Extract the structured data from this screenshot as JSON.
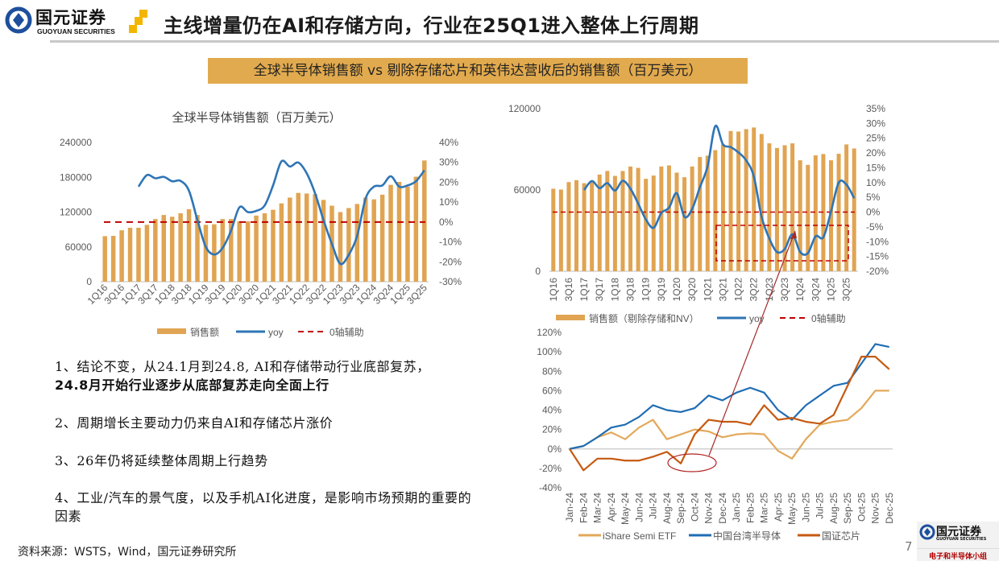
{
  "header": {
    "logo_cn": "国元证券",
    "logo_en": "GUOYUAN SECURITIES",
    "title": "主线增量仍在AI和存储方向，行业在25Q1进入整体上行周期"
  },
  "banner": "全球半导体销售额 vs 剔除存储芯片和英伟达营收后的销售额（百万美元）",
  "points": [
    {
      "text": "1、结论不变，从24.1月到24.8, AI和存储带动行业底部复苏，",
      "bold": "24.8月开始行业逐步从底部复苏走向全面上行"
    },
    {
      "text": "2、周期增长主要动力仍来自AI和存储芯片涨价"
    },
    {
      "text": "3、26年仍将延续整体周期上行趋势"
    },
    {
      "text": "4、工业/汽车的景气度，以及手机AI化进度，是影响市场预期的重要的因素"
    }
  ],
  "source": "资料来源：WSTS，Wind，国元证券研究所",
  "page_number": "7",
  "footer_logo": {
    "cn": "国元证券",
    "en": "GUOYUAN SECURITIES",
    "team": "电子和半导体小组"
  },
  "colors": {
    "bar": "#e0a452",
    "yoy": "#2e75b6",
    "zero_line": "#c00000",
    "ishare": "#e3a85a",
    "taiwan": "#1f6db3",
    "guozheng": "#c55a11",
    "banner": "#e2aa4e"
  },
  "chart_data": [
    {
      "type": "bar+line",
      "title": "全球半导体销售额（百万美元）",
      "categories": [
        "1Q16",
        "2Q16",
        "3Q16",
        "4Q16",
        "1Q17",
        "2Q17",
        "3Q17",
        "4Q17",
        "1Q18",
        "2Q18",
        "3Q18",
        "4Q18",
        "1Q19",
        "2Q19",
        "3Q19",
        "4Q19",
        "1Q20",
        "2Q20",
        "3Q20",
        "4Q20",
        "1Q21",
        "2Q21",
        "3Q21",
        "4Q21",
        "1Q22",
        "2Q22",
        "3Q22",
        "4Q22",
        "1Q23",
        "2Q23",
        "3Q23",
        "4Q23",
        "1Q24",
        "2Q24",
        "3Q24",
        "4Q24",
        "1Q25",
        "2Q25",
        "3Q25"
      ],
      "tick_labels": [
        "1Q16",
        "3Q16",
        "1Q17",
        "3Q17",
        "1Q18",
        "3Q18",
        "1Q19",
        "3Q19",
        "1Q20",
        "3Q20",
        "1Q21",
        "3Q21",
        "1Q22",
        "3Q22",
        "1Q23",
        "3Q23",
        "1Q24",
        "3Q24",
        "1Q25",
        "3Q25"
      ],
      "series": [
        {
          "name": "销售额",
          "type": "bar",
          "axis": "left",
          "values": [
            78500,
            79000,
            88600,
            93000,
            93000,
            98000,
            108000,
            115000,
            112000,
            118000,
            125000,
            115000,
            98000,
            99000,
            108000,
            108000,
            104000,
            104000,
            114000,
            118000,
            124000,
            135000,
            145000,
            153000,
            152000,
            151000,
            141000,
            131000,
            120000,
            127000,
            134000,
            145000,
            142000,
            150000,
            167000,
            172000,
            164000,
            181000,
            209000
          ]
        },
        {
          "name": "yoy",
          "type": "line",
          "axis": "right",
          "values": [
            null,
            null,
            null,
            null,
            17.8,
            23.6,
            22.0,
            22.7,
            20.5,
            20.7,
            15.7,
            1.0,
            -12.5,
            -16.3,
            -13.0,
            -4.4,
            7.4,
            5.0,
            5.6,
            8.3,
            18.4,
            30.5,
            27.9,
            29.9,
            24.5,
            14.4,
            1.0,
            -11.0,
            -21.0,
            -16.5,
            -7.0,
            11.7,
            17.8,
            18.4,
            23.0,
            17.8,
            18.4,
            20.5,
            26.0
          ]
        },
        {
          "name": "0轴辅助",
          "type": "dashed-line",
          "axis": "right",
          "value": 0
        }
      ],
      "left_axis": {
        "range": [
          0,
          240000
        ],
        "ticks": [
          "0",
          "60000",
          "120000",
          "180000",
          "240000"
        ]
      },
      "right_axis": {
        "range": [
          -30,
          40
        ],
        "unit": "%",
        "ticks": [
          "-30%",
          "-20%",
          "-10%",
          "0%",
          "10%",
          "20%",
          "30%",
          "40%"
        ]
      },
      "legend": "bottom",
      "grid": false
    },
    {
      "type": "bar+line",
      "categories": [
        "1Q16",
        "2Q16",
        "3Q16",
        "4Q16",
        "1Q17",
        "2Q17",
        "3Q17",
        "4Q17",
        "1Q18",
        "2Q18",
        "3Q18",
        "4Q18",
        "1Q19",
        "2Q19",
        "3Q19",
        "4Q19",
        "1Q20",
        "2Q20",
        "3Q20",
        "4Q20",
        "1Q21",
        "2Q21",
        "3Q21",
        "4Q21",
        "1Q22",
        "2Q22",
        "3Q22",
        "4Q22",
        "1Q23",
        "2Q23",
        "3Q23",
        "4Q23",
        "1Q24",
        "2Q24",
        "3Q24",
        "4Q24",
        "1Q25",
        "2Q25",
        "3Q25",
        "4Q25"
      ],
      "tick_labels": [
        "1Q16",
        "3Q16",
        "1Q17",
        "3Q17",
        "1Q18",
        "3Q18",
        "1Q19",
        "3Q19",
        "1Q20",
        "3Q20",
        "1Q21",
        "3Q21",
        "1Q22",
        "3Q22",
        "1Q23",
        "3Q23",
        "1Q24",
        "3Q24",
        "1Q25",
        "3Q25"
      ],
      "series": [
        {
          "name": "销售额（剔除存储和NV）",
          "type": "bar",
          "axis": "left",
          "values": [
            60900,
            60300,
            65800,
            67200,
            65000,
            67000,
            71400,
            74000,
            70400,
            74000,
            77300,
            76300,
            68200,
            70600,
            77300,
            78100,
            72800,
            69400,
            77300,
            84300,
            85300,
            89400,
            93600,
            103500,
            103100,
            104900,
            106100,
            101300,
            94400,
            91000,
            93000,
            94400,
            81900,
            78500,
            85500,
            86500,
            81900,
            86700,
            93600,
            90600
          ]
        },
        {
          "name": "yoy",
          "type": "line",
          "axis": "right",
          "values": [
            null,
            null,
            null,
            null,
            7.5,
            10.5,
            8.1,
            9.8,
            7.3,
            10.6,
            7.9,
            2.9,
            -2.5,
            -5.3,
            -0.3,
            1.5,
            6.4,
            -1.6,
            1.1,
            8.4,
            15.5,
            29.1,
            22.9,
            22.0,
            20.2,
            17.5,
            12.0,
            -1.6,
            -8.9,
            -13.5,
            -12.5,
            -7.5,
            -13.5,
            -13.9,
            -8.2,
            -8.5,
            0.2,
            10.0,
            9.3,
            4.7
          ]
        },
        {
          "name": "0轴辅助",
          "type": "dashed-line",
          "axis": "right",
          "value": 0
        }
      ],
      "left_axis": {
        "range": [
          0,
          120000
        ],
        "ticks": [
          "0",
          "60000",
          "120000"
        ]
      },
      "right_axis": {
        "range": [
          -20,
          35
        ],
        "unit": "%",
        "ticks": [
          "-20%",
          "-15%",
          "-10%",
          "-5%",
          "0%",
          "5%",
          "10%",
          "15%",
          "20%",
          "25%",
          "30%",
          "35%"
        ]
      },
      "highlight": "dashed box around 2Q23–4Q24 yoy trough",
      "legend": "bottom",
      "grid": false
    },
    {
      "type": "line",
      "x": [
        "Jan-24",
        "Feb-24",
        "Mar-24",
        "Apr-24",
        "May-24",
        "Jun-24",
        "Jul-24",
        "Aug-24",
        "Sep-24",
        "Oct-24",
        "Nov-24",
        "Dec-24",
        "Jan-25",
        "Feb-25",
        "Mar-25",
        "Apr-25",
        "May-25",
        "Jun-25",
        "Jul-25",
        "Aug-25",
        "Sep-25",
        "Oct-25",
        "Nov-25",
        "Dec-25"
      ],
      "series": [
        {
          "name": "iShare Semi ETF",
          "values": [
            0,
            3,
            12,
            17,
            10,
            22,
            30,
            10,
            15,
            20,
            18,
            12,
            15,
            16,
            15,
            -2,
            -10,
            10,
            25,
            28,
            30,
            42,
            60,
            60
          ]
        },
        {
          "name": "中国台湾半导体",
          "values": [
            0,
            3,
            12,
            22,
            25,
            33,
            45,
            40,
            38,
            42,
            55,
            50,
            58,
            63,
            58,
            40,
            30,
            45,
            55,
            65,
            68,
            88,
            108,
            105
          ]
        },
        {
          "name": "国证芯片",
          "values": [
            0,
            -22,
            -10,
            -10,
            -12,
            -12,
            -8,
            -3,
            -15,
            15,
            30,
            28,
            28,
            25,
            45,
            30,
            32,
            28,
            26,
            35,
            65,
            95,
            95,
            82
          ]
        }
      ],
      "y_axis": {
        "range": [
          -40,
          120
        ],
        "unit": "%",
        "ticks": [
          "-40%",
          "-20%",
          "0%",
          "20%",
          "40%",
          "60%",
          "80%",
          "100%",
          "120%"
        ]
      },
      "annotation": "circle around Sep-24–Oct-24 国证芯片 trough with arrow to the yoy trough box",
      "legend": "bottom",
      "grid": false
    }
  ]
}
